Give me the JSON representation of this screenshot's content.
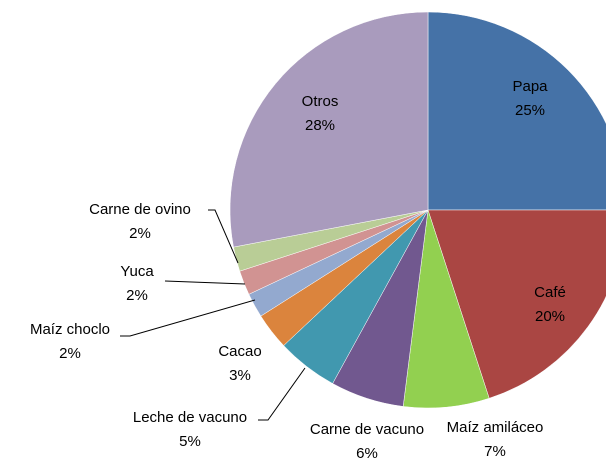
{
  "chart_data": {
    "type": "pie",
    "categories": [
      "Papa",
      "Café",
      "Maíz amiláceo",
      "Carne de vacuno",
      "Leche de vacuno",
      "Cacao",
      "Maíz choclo",
      "Yuca",
      "Carne de ovino",
      "Otros"
    ],
    "values": [
      25,
      20,
      7,
      6,
      5,
      3,
      2,
      2,
      2,
      28
    ],
    "value_labels": [
      "25%",
      "20%",
      "7%",
      "6%",
      "5%",
      "3%",
      "2%",
      "2%",
      "2%",
      "28%"
    ],
    "colors": [
      "#4572a7",
      "#aa4643",
      "#92d050",
      "#71588f",
      "#4198af",
      "#db843d",
      "#93a9cf",
      "#d19392",
      "#b9cd96",
      "#a99bbd"
    ]
  }
}
